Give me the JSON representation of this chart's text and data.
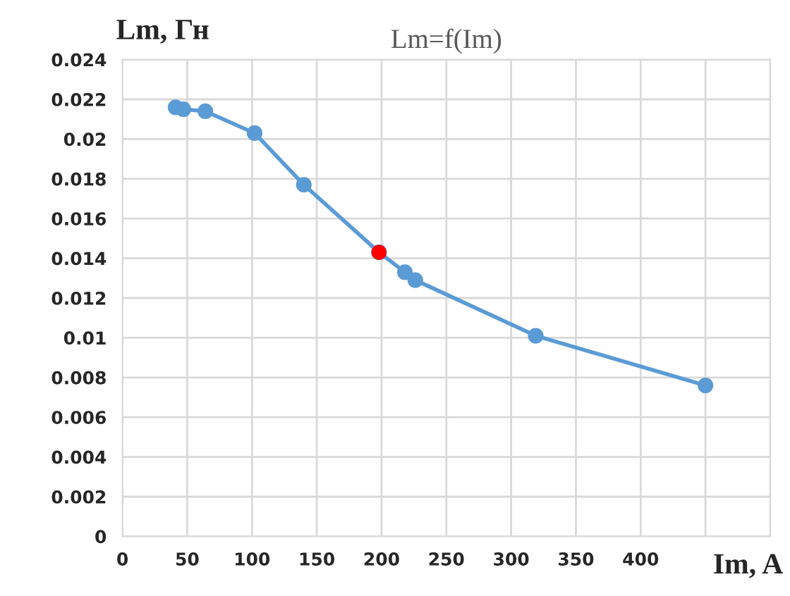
{
  "chart_data": {
    "type": "line",
    "title": "Lm=f(Im)",
    "xlabel": "Im, A",
    "ylabel": "Lm, Гн",
    "series": [
      {
        "color": "#5b9bd5",
        "x": [
          41,
          47,
          64,
          102,
          140,
          198,
          218,
          226,
          319,
          450
        ],
        "values": [
          0.0216,
          0.0215,
          0.0214,
          0.0203,
          0.0177,
          0.0143,
          0.0133,
          0.0129,
          0.0101,
          0.0076
        ]
      },
      {
        "type": "scatter",
        "color": "#ff0000",
        "x": [
          198
        ],
        "values": [
          0.0143
        ]
      }
    ],
    "xlim": [
      0,
      500
    ],
    "xticks": [
      0,
      50,
      100,
      150,
      200,
      250,
      300,
      350,
      400,
      {
        "value": 450,
        "label": null
      },
      {
        "value": 500,
        "label": null
      }
    ],
    "ylim": [
      0,
      0.024
    ],
    "yticks": [
      0,
      0.002,
      0.004,
      0.006,
      0.008,
      0.01,
      0.012,
      0.014,
      0.016,
      0.018,
      0.02,
      0.022,
      0.024
    ],
    "grid": true,
    "marker": "circle"
  }
}
